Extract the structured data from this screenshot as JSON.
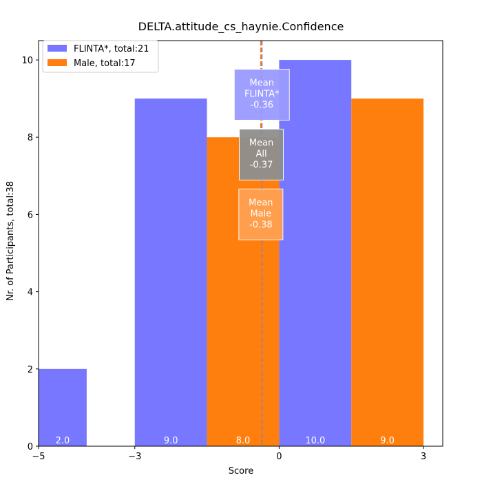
{
  "chart_data": {
    "type": "bar",
    "title": "DELTA.attitude_cs_haynie.Confidence",
    "xlabel": "Score",
    "ylabel": "Nr. of Participants, total:38",
    "xlim": [
      -5.0,
      3.4
    ],
    "ylim": [
      0,
      10.5
    ],
    "xticks": [
      -5,
      -3,
      0,
      3
    ],
    "yticks": [
      0,
      2,
      4,
      6,
      8,
      10
    ],
    "grid": false,
    "legend_position": "top-left",
    "series": [
      {
        "name": "FLINTA*, total:21",
        "color": "#7777ff",
        "bars": [
          {
            "x0": -5.0,
            "x1": -4.0,
            "value": 2,
            "label": "2.0"
          },
          {
            "x0": -3.0,
            "x1": -1.5,
            "value": 9,
            "label": "9.0"
          },
          {
            "x0": 0.0,
            "x1": 1.5,
            "value": 10,
            "label": "10.0"
          }
        ]
      },
      {
        "name": "Male, total:17",
        "color": "#ff7f0e",
        "bars": [
          {
            "x0": -1.5,
            "x1": 0.0,
            "value": 8,
            "label": "8.0"
          },
          {
            "x0": 1.5,
            "x1": 3.0,
            "value": 9,
            "label": "9.0"
          }
        ]
      }
    ],
    "mean_lines": [
      {
        "key": "flinta",
        "lines": [
          "Mean",
          "FLINTA*",
          "-0.36"
        ],
        "value": -0.36,
        "line_color": "#7777ff",
        "box_color": "#9a9aff",
        "box_y": 9.1
      },
      {
        "key": "all",
        "lines": [
          "Mean",
          "All",
          "-0.37"
        ],
        "value": -0.37,
        "line_color": "#808080",
        "box_color": "#8f8f8f",
        "box_y": 7.55
      },
      {
        "key": "male",
        "lines": [
          "Mean",
          "Male",
          "-0.38"
        ],
        "value": -0.38,
        "line_color": "#ff7f0e",
        "box_color": "#ffa050",
        "box_y": 6.0
      }
    ]
  }
}
